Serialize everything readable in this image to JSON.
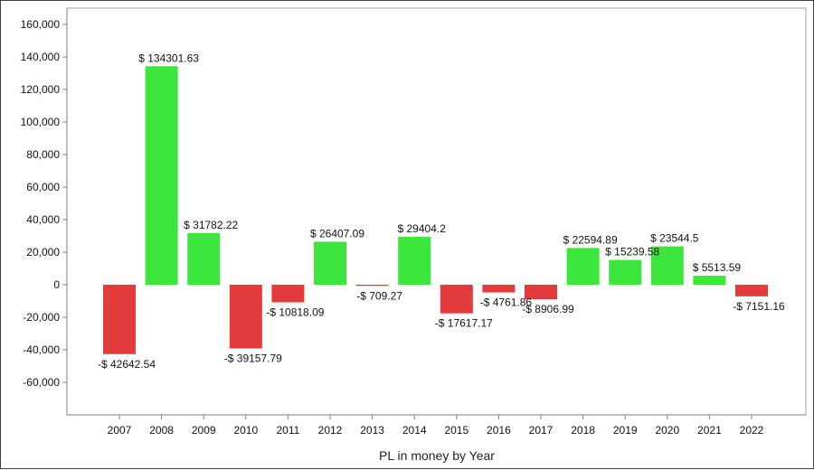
{
  "chart_data": {
    "type": "bar",
    "title": "",
    "xlabel": "PL in money by Year",
    "ylabel": "",
    "categories": [
      "2007",
      "2008",
      "2009",
      "2010",
      "2011",
      "2012",
      "2013",
      "2014",
      "2015",
      "2016",
      "2017",
      "2018",
      "2019",
      "2020",
      "2021",
      "2022"
    ],
    "values": [
      -42642.54,
      134301.63,
      31782.22,
      -39157.79,
      -10818.09,
      26407.09,
      -709.27,
      29404.2,
      -17617.17,
      -4761.86,
      -8906.99,
      22594.89,
      15239.58,
      23544.5,
      5513.59,
      -7151.16
    ],
    "data_labels": [
      "-$ 42642.54",
      "$ 134301.63",
      "$ 31782.22",
      "-$ 39157.79",
      "-$ 10818.09",
      "$ 26407.09",
      "-$ 709.27",
      "$ 29404.2",
      "-$ 17617.17",
      "-$ 4761.86",
      "-$ 8906.99",
      "$ 22594.89",
      "$ 15239.58",
      "$ 23544.5",
      "$ 5513.59",
      "-$ 7151.16"
    ],
    "ylim": [
      -80000,
      170000
    ],
    "yticks": [
      -60000,
      -40000,
      -20000,
      0,
      20000,
      40000,
      60000,
      80000,
      100000,
      120000,
      140000,
      160000
    ],
    "ytick_labels": [
      "-60,000",
      "-40,000",
      "-20,000",
      "0",
      "20,000",
      "40,000",
      "60,000",
      "80,000",
      "100,000",
      "120,000",
      "140,000",
      "160,000"
    ],
    "grid": true,
    "legend": "none",
    "colors": {
      "positive": "#3de63d",
      "negative": "#e33b3b",
      "axis": "#808080",
      "grid": "#dcdcdc"
    }
  }
}
